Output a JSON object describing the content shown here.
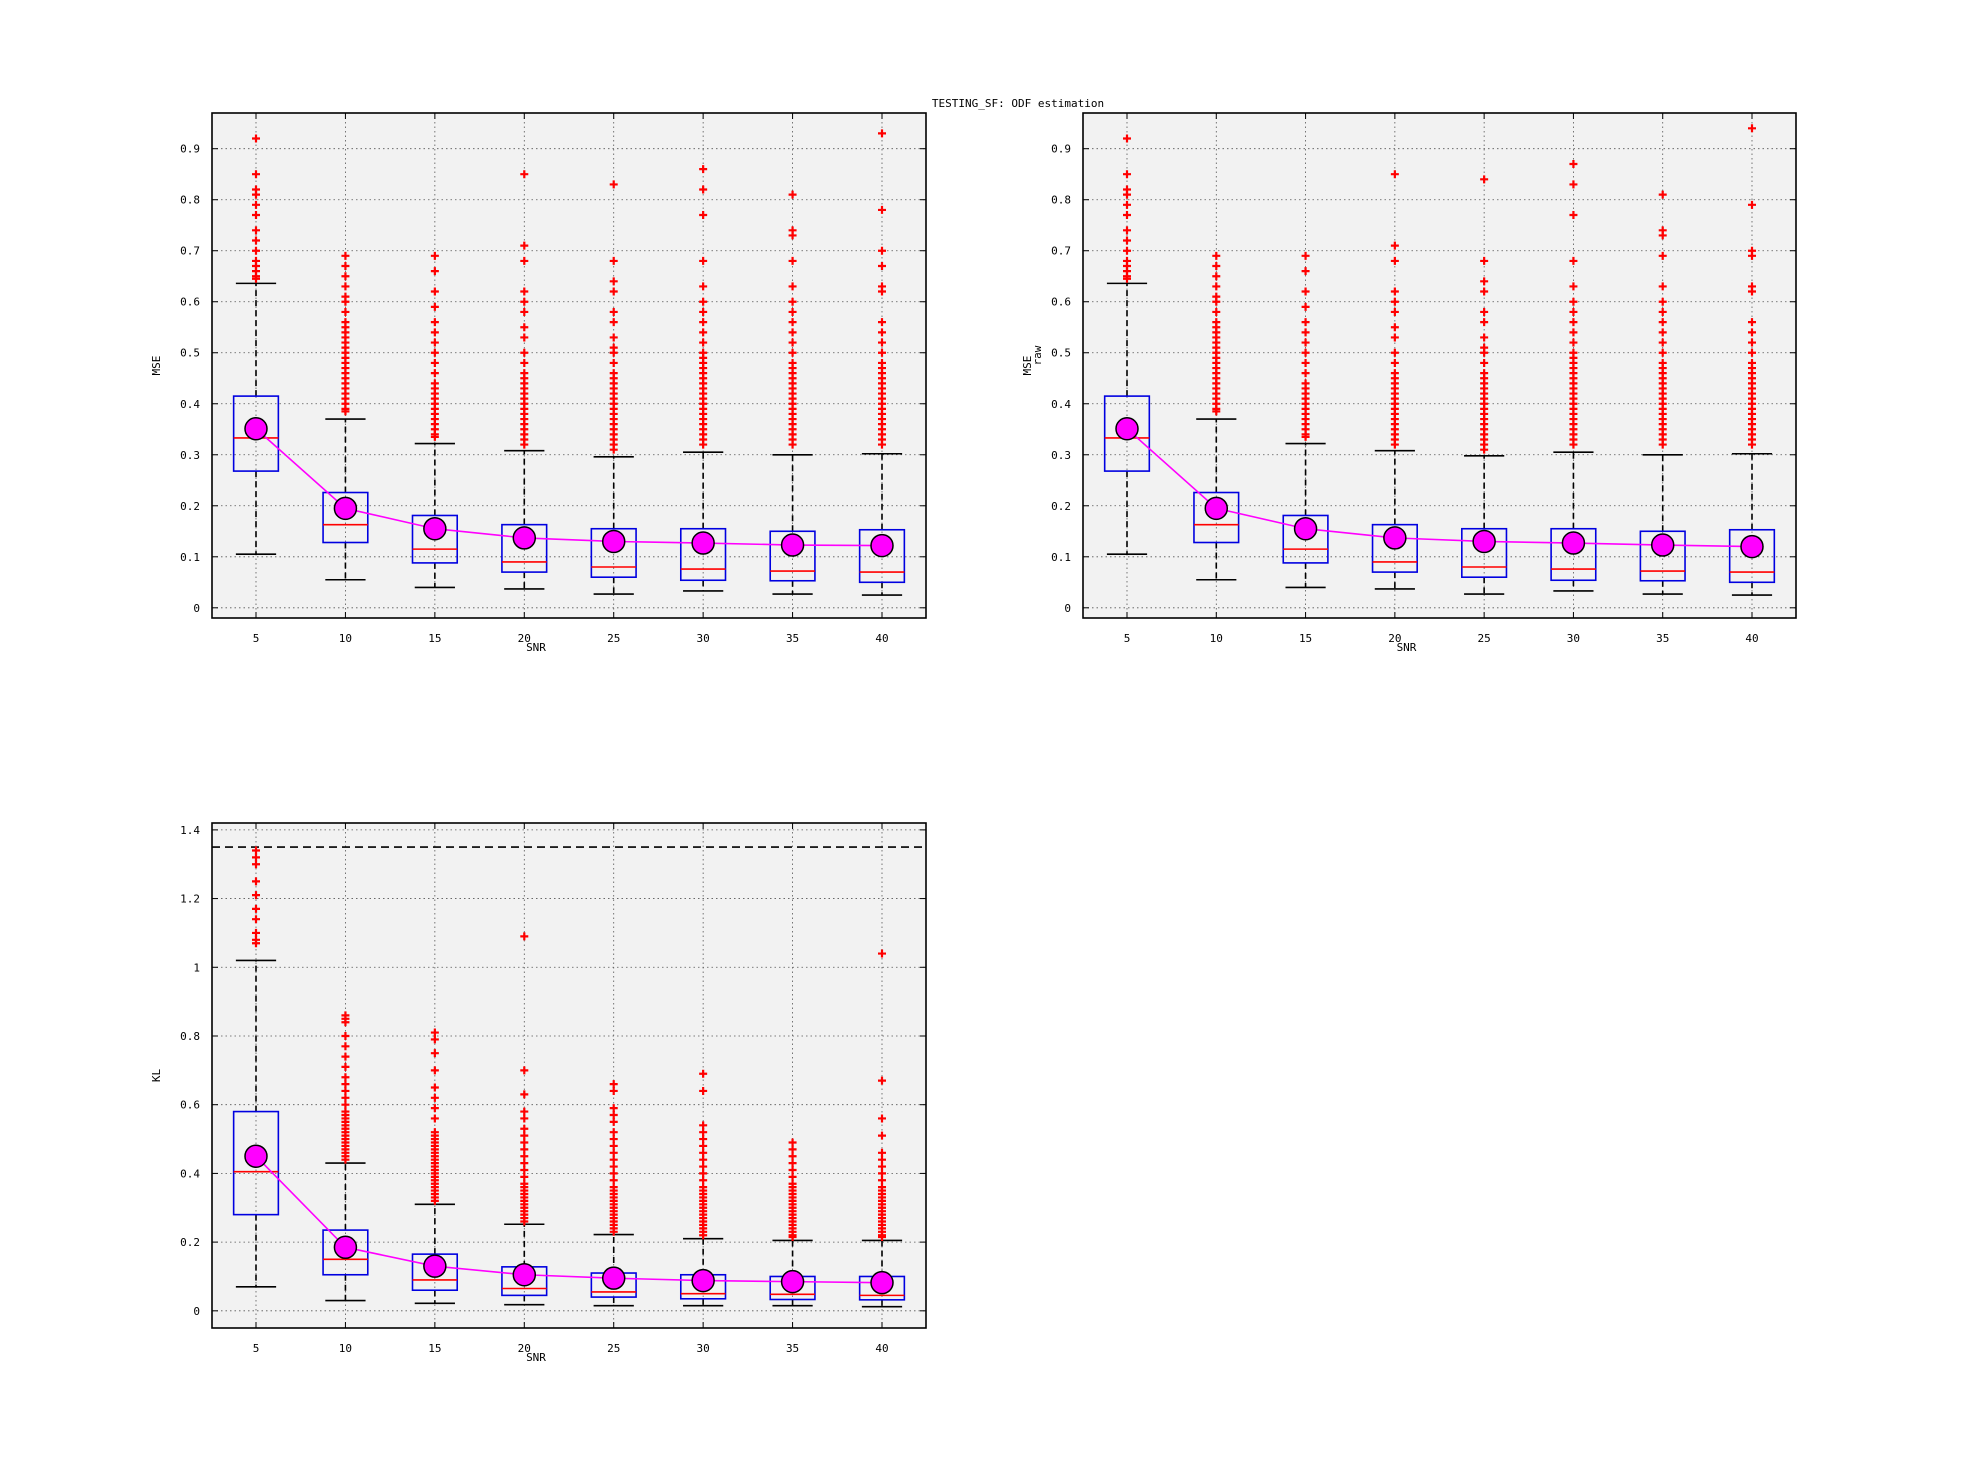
{
  "figure_title": "TESTING_SF: ODF estimation",
  "colors": {
    "panel_bg": "#f2f2f2",
    "box": "#0000e0",
    "median": "#ff0000",
    "outlier": "#ff0000",
    "mean_marker": "#ff00ff",
    "mean_line": "#ff00ff",
    "whisker": "#000000"
  },
  "chart_data": [
    {
      "type": "box",
      "xlabel": "SNR",
      "ylabel": "MSE",
      "ylabel_sub": "",
      "ylim": [
        -0.02,
        0.97
      ],
      "yticks": [
        0,
        0.1,
        0.2,
        0.3,
        0.4,
        0.5,
        0.6,
        0.7,
        0.8,
        0.9
      ],
      "ytick_labels": [
        "0",
        "0.1",
        "0.2",
        "0.3",
        "0.4",
        "0.5",
        "0.6",
        "0.7",
        "0.8",
        "0.9"
      ],
      "categories": [
        "5",
        "10",
        "15",
        "20",
        "25",
        "30",
        "35",
        "40"
      ],
      "grid": true,
      "reference_line": null,
      "boxes": [
        {
          "whisker_low": 0.105,
          "q1": 0.268,
          "median": 0.333,
          "q3": 0.415,
          "whisker_high": 0.636,
          "mean": 0.351,
          "outliers": [
            0.92,
            0.85,
            0.82,
            0.81,
            0.79,
            0.77,
            0.74,
            0.72,
            0.7,
            0.68,
            0.67,
            0.66,
            0.65,
            0.645
          ]
        },
        {
          "whisker_low": 0.055,
          "q1": 0.128,
          "median": 0.163,
          "q3": 0.226,
          "whisker_high": 0.37,
          "mean": 0.195,
          "outliers": [
            0.69,
            0.67,
            0.65,
            0.63,
            0.61,
            0.6,
            0.58,
            0.56,
            0.55,
            0.54,
            0.53,
            0.52,
            0.51,
            0.5,
            0.49,
            0.48,
            0.47,
            0.46,
            0.45,
            0.44,
            0.43,
            0.42,
            0.41,
            0.4,
            0.39,
            0.385
          ]
        },
        {
          "whisker_low": 0.04,
          "q1": 0.088,
          "median": 0.115,
          "q3": 0.181,
          "whisker_high": 0.322,
          "mean": 0.155,
          "outliers": [
            0.69,
            0.66,
            0.62,
            0.59,
            0.56,
            0.54,
            0.52,
            0.5,
            0.48,
            0.46,
            0.44,
            0.43,
            0.42,
            0.41,
            0.4,
            0.39,
            0.38,
            0.37,
            0.36,
            0.35,
            0.34,
            0.335
          ]
        },
        {
          "whisker_low": 0.037,
          "q1": 0.07,
          "median": 0.09,
          "q3": 0.163,
          "whisker_high": 0.308,
          "mean": 0.137,
          "outliers": [
            0.85,
            0.71,
            0.68,
            0.62,
            0.6,
            0.58,
            0.55,
            0.53,
            0.5,
            0.48,
            0.46,
            0.45,
            0.44,
            0.43,
            0.42,
            0.41,
            0.4,
            0.39,
            0.38,
            0.37,
            0.36,
            0.35,
            0.34,
            0.33,
            0.32
          ]
        },
        {
          "whisker_low": 0.027,
          "q1": 0.06,
          "median": 0.08,
          "q3": 0.155,
          "whisker_high": 0.296,
          "mean": 0.13,
          "outliers": [
            0.83,
            0.68,
            0.64,
            0.62,
            0.58,
            0.56,
            0.53,
            0.51,
            0.5,
            0.48,
            0.46,
            0.45,
            0.44,
            0.43,
            0.42,
            0.41,
            0.4,
            0.39,
            0.38,
            0.37,
            0.36,
            0.35,
            0.34,
            0.33,
            0.32,
            0.31
          ]
        },
        {
          "whisker_low": 0.033,
          "q1": 0.054,
          "median": 0.076,
          "q3": 0.155,
          "whisker_high": 0.305,
          "mean": 0.127,
          "outliers": [
            0.86,
            0.82,
            0.77,
            0.68,
            0.63,
            0.6,
            0.58,
            0.56,
            0.54,
            0.52,
            0.5,
            0.49,
            0.48,
            0.47,
            0.46,
            0.45,
            0.44,
            0.43,
            0.42,
            0.41,
            0.4,
            0.39,
            0.38,
            0.37,
            0.36,
            0.35,
            0.34,
            0.33,
            0.32
          ]
        },
        {
          "whisker_low": 0.027,
          "q1": 0.053,
          "median": 0.072,
          "q3": 0.15,
          "whisker_high": 0.3,
          "mean": 0.123,
          "outliers": [
            0.81,
            0.74,
            0.73,
            0.68,
            0.63,
            0.6,
            0.58,
            0.56,
            0.54,
            0.52,
            0.5,
            0.48,
            0.47,
            0.46,
            0.45,
            0.44,
            0.43,
            0.42,
            0.41,
            0.4,
            0.39,
            0.38,
            0.37,
            0.36,
            0.35,
            0.34,
            0.33,
            0.32
          ]
        },
        {
          "whisker_low": 0.025,
          "q1": 0.05,
          "median": 0.07,
          "q3": 0.153,
          "whisker_high": 0.302,
          "mean": 0.122,
          "outliers": [
            0.93,
            0.78,
            0.7,
            0.67,
            0.63,
            0.62,
            0.56,
            0.54,
            0.52,
            0.5,
            0.48,
            0.47,
            0.46,
            0.45,
            0.44,
            0.43,
            0.42,
            0.41,
            0.4,
            0.39,
            0.38,
            0.37,
            0.36,
            0.35,
            0.34,
            0.33,
            0.32
          ]
        }
      ]
    },
    {
      "type": "box",
      "xlabel": "SNR",
      "ylabel": "MSE",
      "ylabel_sub": "raw",
      "ylim": [
        -0.02,
        0.97
      ],
      "yticks": [
        0,
        0.1,
        0.2,
        0.3,
        0.4,
        0.5,
        0.6,
        0.7,
        0.8,
        0.9
      ],
      "ytick_labels": [
        "0",
        "0.1",
        "0.2",
        "0.3",
        "0.4",
        "0.5",
        "0.6",
        "0.7",
        "0.8",
        "0.9"
      ],
      "categories": [
        "5",
        "10",
        "15",
        "20",
        "25",
        "30",
        "35",
        "40"
      ],
      "grid": true,
      "reference_line": null,
      "boxes": [
        {
          "whisker_low": 0.105,
          "q1": 0.268,
          "median": 0.333,
          "q3": 0.415,
          "whisker_high": 0.636,
          "mean": 0.351,
          "outliers": [
            0.92,
            0.85,
            0.82,
            0.81,
            0.79,
            0.77,
            0.74,
            0.72,
            0.7,
            0.68,
            0.67,
            0.66,
            0.65,
            0.645
          ]
        },
        {
          "whisker_low": 0.055,
          "q1": 0.128,
          "median": 0.163,
          "q3": 0.226,
          "whisker_high": 0.37,
          "mean": 0.195,
          "outliers": [
            0.69,
            0.67,
            0.65,
            0.63,
            0.61,
            0.6,
            0.58,
            0.56,
            0.55,
            0.54,
            0.53,
            0.52,
            0.51,
            0.5,
            0.49,
            0.48,
            0.47,
            0.46,
            0.45,
            0.44,
            0.43,
            0.42,
            0.41,
            0.4,
            0.39,
            0.385
          ]
        },
        {
          "whisker_low": 0.04,
          "q1": 0.088,
          "median": 0.115,
          "q3": 0.181,
          "whisker_high": 0.322,
          "mean": 0.155,
          "outliers": [
            0.69,
            0.66,
            0.62,
            0.59,
            0.56,
            0.54,
            0.52,
            0.5,
            0.48,
            0.46,
            0.44,
            0.43,
            0.42,
            0.41,
            0.4,
            0.39,
            0.38,
            0.37,
            0.36,
            0.35,
            0.34,
            0.335
          ]
        },
        {
          "whisker_low": 0.037,
          "q1": 0.07,
          "median": 0.09,
          "q3": 0.163,
          "whisker_high": 0.308,
          "mean": 0.137,
          "outliers": [
            0.85,
            0.71,
            0.68,
            0.62,
            0.6,
            0.58,
            0.55,
            0.53,
            0.5,
            0.48,
            0.46,
            0.45,
            0.44,
            0.43,
            0.42,
            0.41,
            0.4,
            0.39,
            0.38,
            0.37,
            0.36,
            0.35,
            0.34,
            0.33,
            0.32
          ]
        },
        {
          "whisker_low": 0.027,
          "q1": 0.06,
          "median": 0.08,
          "q3": 0.155,
          "whisker_high": 0.298,
          "mean": 0.13,
          "outliers": [
            0.84,
            0.68,
            0.64,
            0.62,
            0.58,
            0.56,
            0.53,
            0.51,
            0.5,
            0.48,
            0.46,
            0.45,
            0.44,
            0.43,
            0.42,
            0.41,
            0.4,
            0.39,
            0.38,
            0.37,
            0.36,
            0.35,
            0.34,
            0.33,
            0.32,
            0.31
          ]
        },
        {
          "whisker_low": 0.033,
          "q1": 0.054,
          "median": 0.076,
          "q3": 0.155,
          "whisker_high": 0.305,
          "mean": 0.127,
          "outliers": [
            0.87,
            0.83,
            0.77,
            0.68,
            0.63,
            0.6,
            0.58,
            0.56,
            0.54,
            0.52,
            0.5,
            0.49,
            0.48,
            0.47,
            0.46,
            0.45,
            0.44,
            0.43,
            0.42,
            0.41,
            0.4,
            0.39,
            0.38,
            0.37,
            0.36,
            0.35,
            0.34,
            0.33,
            0.32
          ]
        },
        {
          "whisker_low": 0.027,
          "q1": 0.053,
          "median": 0.072,
          "q3": 0.15,
          "whisker_high": 0.3,
          "mean": 0.123,
          "outliers": [
            0.81,
            0.74,
            0.73,
            0.69,
            0.63,
            0.6,
            0.58,
            0.56,
            0.54,
            0.52,
            0.5,
            0.48,
            0.47,
            0.46,
            0.45,
            0.44,
            0.43,
            0.42,
            0.41,
            0.4,
            0.39,
            0.38,
            0.37,
            0.36,
            0.35,
            0.34,
            0.33,
            0.32
          ]
        },
        {
          "whisker_low": 0.025,
          "q1": 0.05,
          "median": 0.07,
          "q3": 0.153,
          "whisker_high": 0.302,
          "mean": 0.12,
          "outliers": [
            0.94,
            0.79,
            0.7,
            0.69,
            0.63,
            0.62,
            0.56,
            0.54,
            0.52,
            0.5,
            0.48,
            0.47,
            0.46,
            0.45,
            0.44,
            0.43,
            0.42,
            0.41,
            0.4,
            0.39,
            0.38,
            0.37,
            0.36,
            0.35,
            0.34,
            0.33,
            0.32
          ]
        }
      ]
    },
    {
      "type": "box",
      "xlabel": "SNR",
      "ylabel": "KL",
      "ylabel_sub": "",
      "ylim": [
        -0.05,
        1.42
      ],
      "yticks": [
        0,
        0.2,
        0.4,
        0.6,
        0.8,
        1,
        1.2,
        1.4
      ],
      "ytick_labels": [
        "0",
        "0.2",
        "0.4",
        "0.6",
        "0.8",
        "1",
        "1.2",
        "1.4"
      ],
      "categories": [
        "5",
        "10",
        "15",
        "20",
        "25",
        "30",
        "35",
        "40"
      ],
      "grid": true,
      "reference_line": 1.35,
      "boxes": [
        {
          "whisker_low": 0.07,
          "q1": 0.28,
          "median": 0.405,
          "q3": 0.58,
          "whisker_high": 1.02,
          "mean": 0.45,
          "outliers": [
            1.34,
            1.32,
            1.3,
            1.25,
            1.21,
            1.17,
            1.14,
            1.1,
            1.08,
            1.07
          ]
        },
        {
          "whisker_low": 0.03,
          "q1": 0.105,
          "median": 0.15,
          "q3": 0.235,
          "whisker_high": 0.43,
          "mean": 0.185,
          "outliers": [
            0.86,
            0.85,
            0.84,
            0.8,
            0.77,
            0.74,
            0.71,
            0.68,
            0.66,
            0.64,
            0.62,
            0.6,
            0.58,
            0.57,
            0.56,
            0.55,
            0.54,
            0.53,
            0.52,
            0.51,
            0.5,
            0.49,
            0.48,
            0.47,
            0.46,
            0.45,
            0.44
          ]
        },
        {
          "whisker_low": 0.022,
          "q1": 0.06,
          "median": 0.09,
          "q3": 0.165,
          "whisker_high": 0.31,
          "mean": 0.13,
          "outliers": [
            0.81,
            0.79,
            0.75,
            0.7,
            0.65,
            0.62,
            0.59,
            0.56,
            0.52,
            0.51,
            0.5,
            0.49,
            0.48,
            0.47,
            0.46,
            0.45,
            0.44,
            0.43,
            0.42,
            0.41,
            0.4,
            0.39,
            0.38,
            0.37,
            0.36,
            0.35,
            0.34,
            0.33,
            0.32
          ]
        },
        {
          "whisker_low": 0.018,
          "q1": 0.045,
          "median": 0.065,
          "q3": 0.128,
          "whisker_high": 0.252,
          "mean": 0.105,
          "outliers": [
            1.09,
            0.7,
            0.63,
            0.58,
            0.56,
            0.53,
            0.51,
            0.49,
            0.47,
            0.45,
            0.43,
            0.41,
            0.39,
            0.37,
            0.36,
            0.35,
            0.34,
            0.33,
            0.32,
            0.31,
            0.3,
            0.29,
            0.28,
            0.27,
            0.26
          ]
        },
        {
          "whisker_low": 0.015,
          "q1": 0.04,
          "median": 0.055,
          "q3": 0.11,
          "whisker_high": 0.222,
          "mean": 0.095,
          "outliers": [
            0.66,
            0.64,
            0.59,
            0.57,
            0.55,
            0.52,
            0.5,
            0.48,
            0.46,
            0.44,
            0.42,
            0.4,
            0.38,
            0.36,
            0.35,
            0.34,
            0.33,
            0.32,
            0.31,
            0.3,
            0.29,
            0.28,
            0.27,
            0.26,
            0.25,
            0.24,
            0.23
          ]
        },
        {
          "whisker_low": 0.015,
          "q1": 0.035,
          "median": 0.05,
          "q3": 0.105,
          "whisker_high": 0.21,
          "mean": 0.088,
          "outliers": [
            0.69,
            0.64,
            0.54,
            0.52,
            0.5,
            0.48,
            0.46,
            0.44,
            0.42,
            0.4,
            0.38,
            0.36,
            0.35,
            0.34,
            0.33,
            0.32,
            0.31,
            0.3,
            0.29,
            0.28,
            0.27,
            0.26,
            0.25,
            0.24,
            0.23,
            0.22
          ]
        },
        {
          "whisker_low": 0.015,
          "q1": 0.033,
          "median": 0.048,
          "q3": 0.1,
          "whisker_high": 0.205,
          "mean": 0.085,
          "outliers": [
            0.49,
            0.47,
            0.45,
            0.43,
            0.41,
            0.39,
            0.37,
            0.36,
            0.35,
            0.34,
            0.33,
            0.32,
            0.31,
            0.3,
            0.29,
            0.28,
            0.27,
            0.26,
            0.25,
            0.24,
            0.23,
            0.22,
            0.215
          ]
        },
        {
          "whisker_low": 0.012,
          "q1": 0.032,
          "median": 0.045,
          "q3": 0.1,
          "whisker_high": 0.205,
          "mean": 0.082,
          "outliers": [
            1.04,
            0.67,
            0.56,
            0.51,
            0.46,
            0.44,
            0.42,
            0.4,
            0.38,
            0.36,
            0.35,
            0.34,
            0.33,
            0.32,
            0.31,
            0.3,
            0.29,
            0.28,
            0.27,
            0.26,
            0.25,
            0.24,
            0.23,
            0.22,
            0.215
          ]
        }
      ]
    }
  ]
}
